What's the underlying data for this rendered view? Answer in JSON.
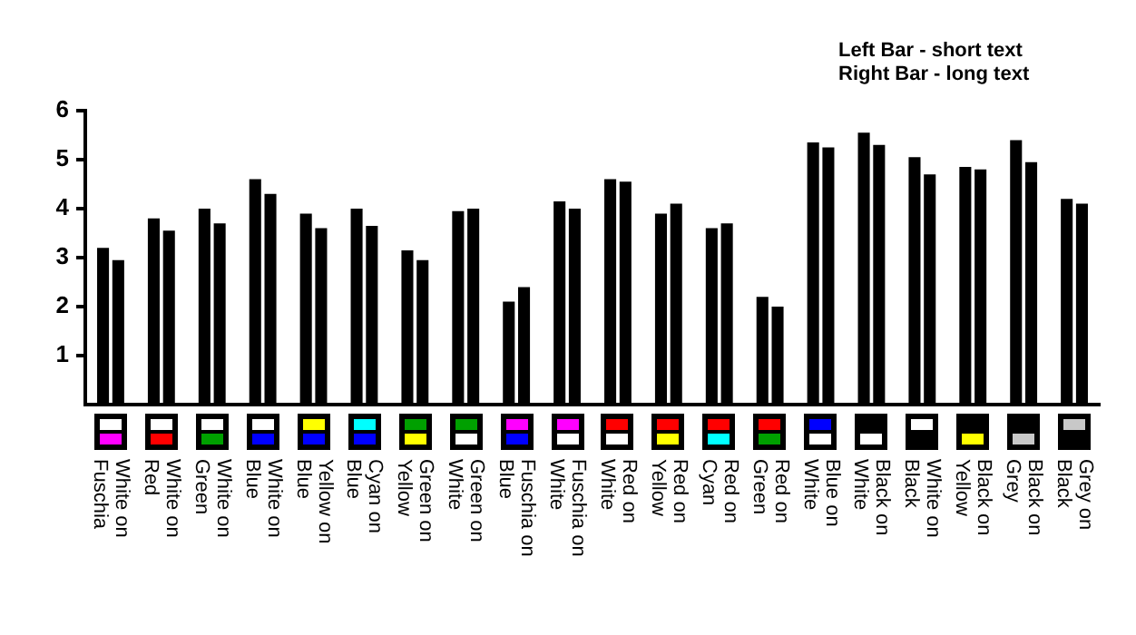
{
  "chart_data": {
    "type": "bar",
    "categories": [
      "White on Fuschia",
      "White on Red",
      "White on Green",
      "White on Blue",
      "Yellow on Blue",
      "Cyan on Blue",
      "Green on Yellow",
      "Green on White",
      "Fuschia on Blue",
      "Fuschia on White",
      "Red on White",
      "Red on Yellow",
      "Red on Cyan",
      "Red on Green",
      "Blue on White",
      "Black on White",
      "White on Black",
      "Black on Yellow",
      "Black on Grey",
      "Grey on Black"
    ],
    "series": [
      {
        "color": "#000000",
        "values": [
          3.2,
          3.8,
          4.0,
          4.6,
          3.9,
          4.0,
          3.15,
          3.95,
          2.1,
          4.15,
          4.6,
          3.9,
          3.6,
          2.2,
          5.35,
          5.55,
          5.05,
          4.85,
          5.4,
          4.2
        ]
      },
      {
        "color": "#000000",
        "values": [
          2.95,
          3.55,
          3.7,
          4.3,
          3.6,
          3.65,
          2.95,
          4.0,
          2.4,
          4.0,
          4.55,
          4.1,
          3.7,
          2.0,
          5.25,
          5.3,
          4.7,
          4.8,
          4.95,
          4.1
        ]
      }
    ],
    "ylim": [
      0,
      6
    ],
    "yticks": [
      1,
      2,
      3,
      4,
      5,
      6
    ],
    "grid": false,
    "legend": false,
    "annotations": [
      "Left Bar - short text",
      "Right Bar - long text"
    ]
  }
}
